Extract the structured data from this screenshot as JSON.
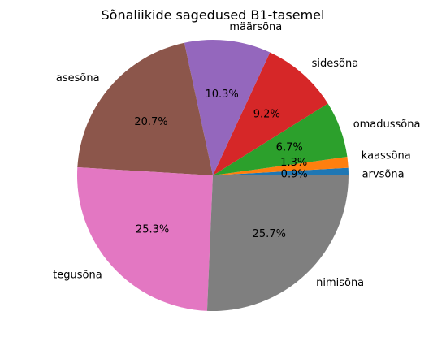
{
  "chart_data": {
    "type": "pie",
    "title": "Sõnaliikide sagedused B1-tasemel",
    "start_angle_deg": 0,
    "direction": "counterclockwise",
    "slices": [
      {
        "label": "arvsõna",
        "value": 0.9,
        "pct_label": "0.9%",
        "color": "#1f77b4"
      },
      {
        "label": "kaassõna",
        "value": 1.3,
        "pct_label": "1.3%",
        "color": "#ff7f0e"
      },
      {
        "label": "omadussõna",
        "value": 6.7,
        "pct_label": "6.7%",
        "color": "#2ca02c"
      },
      {
        "label": "sidesõna",
        "value": 9.2,
        "pct_label": "9.2%",
        "color": "#d62728"
      },
      {
        "label": "määrsõna",
        "value": 10.3,
        "pct_label": "10.3%",
        "color": "#9467bd"
      },
      {
        "label": "asesõna",
        "value": 20.7,
        "pct_label": "20.7%",
        "color": "#8c564b"
      },
      {
        "label": "tegusõna",
        "value": 25.3,
        "pct_label": "25.3%",
        "color": "#e377c2"
      },
      {
        "label": "nimisõna",
        "value": 25.7,
        "pct_label": "25.7%",
        "color": "#7f7f7f"
      }
    ]
  }
}
